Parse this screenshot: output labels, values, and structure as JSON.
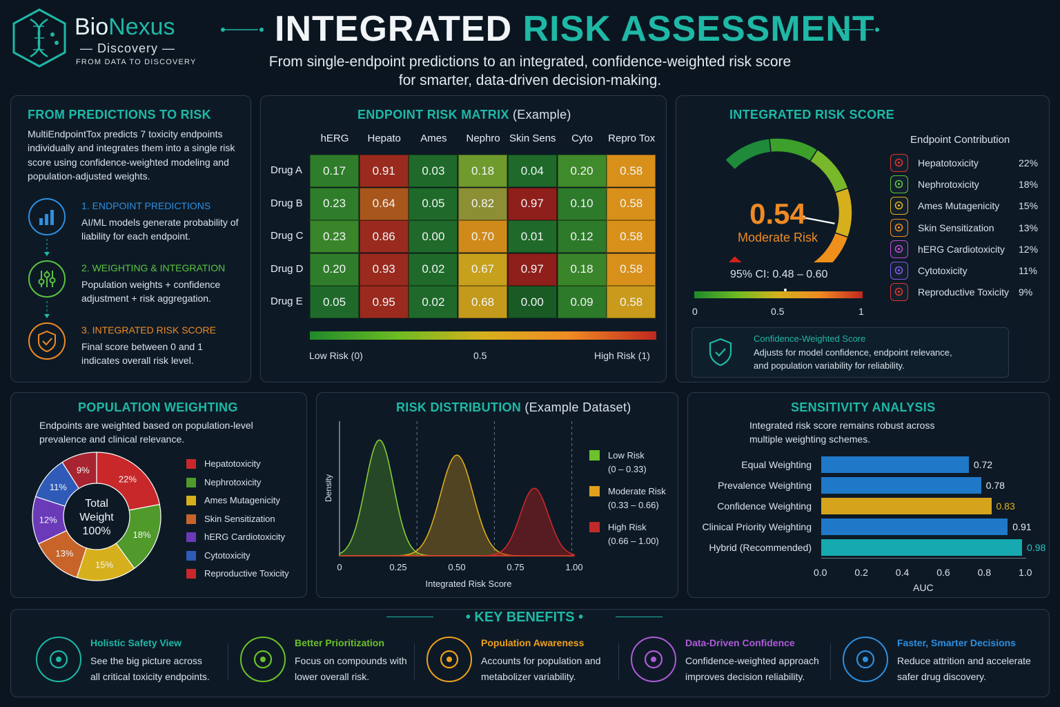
{
  "header": {
    "logo_bio": "Bio",
    "logo_nexus": "Nexus",
    "logo_sub": "Discovery",
    "logo_tagline": "FROM DATA TO DISCOVERY",
    "title_part1": "INTEGRATED",
    "title_part2": "RISK ASSESSMENT",
    "subtitle_line1": "From single-endpoint predictions to an integrated, confidence-weighted risk score",
    "subtitle_line2": "for smarter, data-driven decision-making."
  },
  "predictions": {
    "title": "FROM PREDICTIONS TO RISK",
    "intro": "MultiEndpointTox predicts 7 toxicity endpoints individually and integrates them into a single risk score using confidence-weighted modeling and population-adjusted weights.",
    "steps": [
      {
        "title": "1. ENDPOINT PREDICTIONS",
        "text": "AI/ML models generate probability of liability for each endpoint.",
        "color": "#2e8fe0",
        "icon": "bar-chart-icon"
      },
      {
        "title": "2. WEIGHTING & INTEGRATION",
        "text": "Population weights + confidence adjustment + risk aggregation.",
        "color": "#5cc441",
        "icon": "sliders-icon"
      },
      {
        "title": "3. INTEGRATED RISK SCORE",
        "text": "Final score between 0 and 1 indicates overall risk level.",
        "color": "#f08a24",
        "icon": "shield-check-icon"
      }
    ]
  },
  "matrix": {
    "title": "ENDPOINT RISK MATRIX",
    "title_note": "(Example)",
    "columns": [
      "hERG",
      "Hepato",
      "Ames",
      "Nephro",
      "Skin Sens",
      "Cyto",
      "Repro Tox"
    ],
    "rows": [
      {
        "label": "Drug A",
        "values": [
          "0.17",
          "0.91",
          "0.03",
          "0.18",
          "0.04",
          "0.20",
          "0.58"
        ]
      },
      {
        "label": "Drug B",
        "values": [
          "0.23",
          "0.64",
          "0.05",
          "0.82",
          "0.97",
          "0.10",
          "0.58"
        ]
      },
      {
        "label": "Drug C",
        "values": [
          "0.23",
          "0.86",
          "0.00",
          "0.70",
          "0.01",
          "0.12",
          "0.58"
        ]
      },
      {
        "label": "Drug D",
        "values": [
          "0.20",
          "0.93",
          "0.02",
          "0.67",
          "0.97",
          "0.18",
          "0.58"
        ]
      },
      {
        "label": "Drug E",
        "values": [
          "0.05",
          "0.95",
          "0.02",
          "0.68",
          "0.00",
          "0.09",
          "0.58"
        ]
      }
    ],
    "cell_colors": [
      [
        "#2f7d2a",
        "#9a2a1e",
        "#1f6a2a",
        "#6f9a2c",
        "#1f6a2a",
        "#3f8a2a",
        "#d8901a"
      ],
      [
        "#2f7d2a",
        "#a8561c",
        "#1f6a2a",
        "#8c8f34",
        "#8f1f1a",
        "#2d7a2a",
        "#d8901a"
      ],
      [
        "#3a852a",
        "#9a2a1e",
        "#1f6a2a",
        "#d08a1a",
        "#1f6a2a",
        "#2d7a2a",
        "#d8901a"
      ],
      [
        "#2f7d2a",
        "#9a2a1e",
        "#1f6a2a",
        "#c7a01c",
        "#8f1f1a",
        "#3a852a",
        "#d8901a"
      ],
      [
        "#1f6a2a",
        "#9a2a1e",
        "#1f6a2a",
        "#c49a1c",
        "#1a5a24",
        "#2d7a2a",
        "#c99a1c"
      ]
    ],
    "scale_low": "Low Risk (0)",
    "scale_mid": "0.5",
    "scale_high": "High Risk (1)"
  },
  "integrated": {
    "title": "INTEGRATED RISK SCORE",
    "score_text": "0.54",
    "score": 0.54,
    "level": "Moderate Risk",
    "ci": "95% CI: 0.48 – 0.60",
    "axis_min": "0",
    "axis_mid": "0.5",
    "axis_max": "1",
    "contrib_title": "Endpoint Contribution",
    "contributions": [
      {
        "name": "Hepatotoxicity",
        "value": "22%",
        "color": "#e2342b",
        "icon": "liver-icon"
      },
      {
        "name": "Nephrotoxicity",
        "value": "18%",
        "color": "#5cc441",
        "icon": "kidney-icon"
      },
      {
        "name": "Ames Mutagenicity",
        "value": "15%",
        "color": "#e0b21c",
        "icon": "dna-icon"
      },
      {
        "name": "Skin Sensitization",
        "value": "13%",
        "color": "#f08a24",
        "icon": "hand-icon"
      },
      {
        "name": "hERG Cardiotoxicity",
        "value": "12%",
        "color": "#c04bd8",
        "icon": "heart-icon"
      },
      {
        "name": "Cytotoxicity",
        "value": "11%",
        "color": "#7b5cf0",
        "icon": "cell-icon"
      },
      {
        "name": "Reproductive Toxicity",
        "value": "9%",
        "color": "#e2342b",
        "icon": "people-icon"
      }
    ],
    "note_title": "Confidence-Weighted Score",
    "note_text": "Adjusts for model confidence, endpoint relevance, and population variability for reliability."
  },
  "population": {
    "title": "POPULATION WEIGHTING",
    "desc": "Endpoints are weighted based on population-level prevalence and clinical relevance.",
    "center_line1": "Total",
    "center_line2": "Weight",
    "center_line3": "100%",
    "slices": [
      {
        "name": "Hepatotoxicity",
        "value": 22,
        "label": "22%",
        "color": "#c8282a"
      },
      {
        "name": "Nephrotoxicity",
        "value": 18,
        "label": "18%",
        "color": "#4f9a2a"
      },
      {
        "name": "Ames Mutagenicity",
        "value": 15,
        "label": "15%",
        "color": "#d6b01c"
      },
      {
        "name": "Skin Sensitization",
        "value": 13,
        "label": "13%",
        "color": "#c8642a"
      },
      {
        "name": "hERG Cardiotoxicity",
        "value": 12,
        "label": "12%",
        "color": "#6a3ab8"
      },
      {
        "name": "Cytotoxicity",
        "value": 11,
        "label": "11%",
        "color": "#2f5ab8"
      },
      {
        "name": "Reproductive Toxicity",
        "value": 9,
        "label": "9%",
        "color": "#a82430"
      }
    ],
    "legend_colors": [
      "#c8282a",
      "#4f9a2a",
      "#d6b01c",
      "#c8642a",
      "#6a3ab8",
      "#2f5ab8",
      "#c8282a"
    ]
  },
  "distribution": {
    "title": "RISK DISTRIBUTION",
    "title_note": "(Example Dataset)",
    "ylabel": "Density",
    "xlabel": "Integrated Risk Score",
    "xticks": [
      "0",
      "0.25",
      "0.50",
      "0.75",
      "1.00"
    ],
    "legend": [
      {
        "line1": "Low Risk",
        "line2": "(0 – 0.33)",
        "color": "#6cc22a"
      },
      {
        "line1": "Moderate Risk",
        "line2": "(0.33 – 0.66)",
        "color": "#e0a01c"
      },
      {
        "line1": "High Risk",
        "line2": "(0.66 – 1.00)",
        "color": "#c02a2a"
      }
    ]
  },
  "chart_data": {
    "type": "bar",
    "title": "SENSITIVITY ANALYSIS",
    "desc": "Integrated risk score remains robust across multiple weighting schemes.",
    "categories": [
      "Equal Weighting",
      "Prevalence Weighting",
      "Confidence Weighting",
      "Clinical Priority Weighting",
      "Hybrid (Recommended)"
    ],
    "values": [
      0.72,
      0.78,
      0.83,
      0.91,
      0.98
    ],
    "value_labels": [
      "0.72",
      "0.78",
      "0.83",
      "0.91",
      "0.98"
    ],
    "bar_colors": [
      "#1f78c8",
      "#1f78c8",
      "#d6a41c",
      "#1f78c8",
      "#17a9b0"
    ],
    "label_colors": [
      "#e6edf3",
      "#e6edf3",
      "#e0b21c",
      "#e6edf3",
      "#2ec4c0"
    ],
    "xlabel": "AUC",
    "ylabel": "",
    "xlim": [
      0,
      1.0
    ],
    "xticks": [
      "0.0",
      "0.2",
      "0.4",
      "0.6",
      "0.8",
      "1.0"
    ],
    "grid": false
  },
  "benefits": {
    "title": "KEY BENEFITS",
    "items": [
      {
        "title": "Holistic Safety View",
        "line1": "See the big picture across",
        "line2": "all critical toxicity endpoints.",
        "color": "#1fb8a6",
        "icon": "shield-icon"
      },
      {
        "title": "Better Prioritization",
        "line1": "Focus on compounds with",
        "line2": "lower overall risk.",
        "color": "#6cc22a",
        "icon": "target-icon"
      },
      {
        "title": "Population Awareness",
        "line1": "Accounts for population and",
        "line2": "metabolizer variability.",
        "color": "#f0a01c",
        "icon": "group-icon"
      },
      {
        "title": "Data-Driven Confidence",
        "line1": "Confidence-weighted approach",
        "line2": "improves decision reliability.",
        "color": "#b05ad8",
        "icon": "growth-chart-icon"
      },
      {
        "title": "Faster, Smarter Decisions",
        "line1": "Reduce attrition and accelerate",
        "line2": "safer drug discovery.",
        "color": "#2e8fe0",
        "icon": "flask-icon"
      }
    ]
  }
}
